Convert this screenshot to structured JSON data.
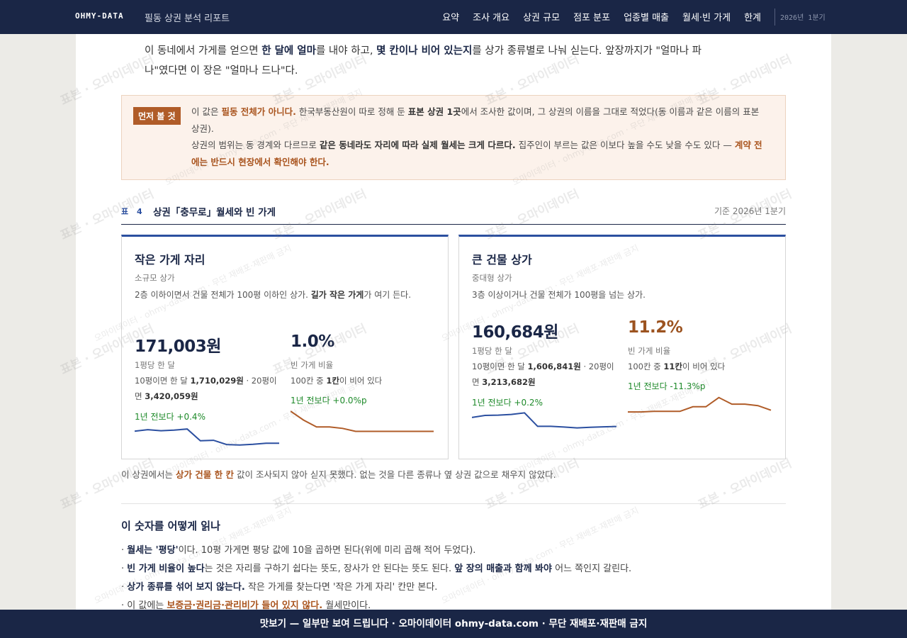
{
  "header": {
    "brand": "OHMY-DATA",
    "subtitle": "필동 상권 분석 리포트",
    "nav": [
      "요약",
      "조사 개요",
      "상권 규모",
      "점포 분포",
      "업종별 매출",
      "월세·빈 가게",
      "한계"
    ],
    "period": "2026년 1분기"
  },
  "intro": {
    "p1": "이 동네에서 가게를 얻으면 ",
    "b1": "한 달에 얼마",
    "p2": "를 내야 하고, ",
    "b2": "몇 칸이나 비어 있는지",
    "p3": "를 상가 종류별로 나눠 싣는다. 앞장까지가 \"얼마나 파나\"였다면 이 장은 \"얼마나 드나\"다."
  },
  "notice": {
    "tag": "먼저 볼 것",
    "t1": "이 값은 ",
    "o1": "필동 전체가 아니다.",
    "t2": " 한국부동산원이 따로 정해 둔 ",
    "b1": "표본 상권 1곳",
    "t3": "에서 조사한 값이며, 그 상권의 이름을 그대로 적었다(동 이름과 같은 이름의 표본 상권).",
    "t4": "상권의 범위는 동 경계와 다르므로 ",
    "b2": "같은 동네라도 자리에 따라 실제 월세는 크게 다르다.",
    "t5": " 집주인이 부르는 값은 이보다 높을 수도 낮을 수도 있다 — ",
    "o2": "계약 전에는 반드시 현장에서 확인해야 한다."
  },
  "table": {
    "num": "표 4",
    "title": "상권「충무로」월세와 빈 가게",
    "base": "기준 2026년 1분기"
  },
  "cards": [
    {
      "title": "작은 가게 자리",
      "type": "소규모 상가",
      "desc_pre": "2층 이하이면서 건물 전체가 100평 이하인 상가. ",
      "desc_bold": "길가 작은 가게",
      "desc_post": "가 여기 든다.",
      "rent": "171,003원",
      "rent_label": "1평당 한 달",
      "rent_d1": "10평이면 한 달 ",
      "rent_v1": "1,710,029원",
      "rent_d2": " · 20평이면 ",
      "rent_v2": "3,420,059원",
      "rent_change": "1년 전보다 +0.4%",
      "vacancy": "1.0%",
      "vacancy_label": "빈 가게 비율",
      "vac_d1": "100칸 중 ",
      "vac_v1": "1칸",
      "vac_d2": "이 비어 있다",
      "vac_change": "1년 전보다 +0.0%p"
    },
    {
      "title": "큰 건물 상가",
      "type": "중대형 상가",
      "desc_pre": "3층 이상이거나 건물 전체가 100평을 넘는 상가.",
      "desc_bold": "",
      "desc_post": "",
      "rent": "160,684원",
      "rent_label": "1평당 한 달",
      "rent_d1": "10평이면 한 달 ",
      "rent_v1": "1,606,841원",
      "rent_d2": " · 20평이면 ",
      "rent_v2": "3,213,682원",
      "rent_change": "1년 전보다 +0.2%",
      "vacancy": "11.2%",
      "vacancy_label": "빈 가게 비율",
      "vac_d1": "100칸 중 ",
      "vac_v1": "11칸",
      "vac_d2": "이 비어 있다",
      "vac_change": "1년 전보다 -11.3%p"
    }
  ],
  "chart_data": [
    {
      "type": "line",
      "series": [
        {
          "values": [
            0.24,
            0.17,
            0.22,
            0.19,
            0.14,
            0.69,
            0.67,
            0.87,
            0.89,
            0.86,
            0.81,
            0.81
          ]
        }
      ],
      "color": "#2b4fa0"
    },
    {
      "type": "line",
      "series": [
        {
          "values": [
            0.0,
            0.42,
            0.74,
            0.74,
            0.81,
            0.95,
            0.95,
            0.95,
            0.95,
            0.95,
            0.95,
            0.95
          ]
        }
      ],
      "color": "#b05c28"
    },
    {
      "type": "line",
      "series": [
        {
          "values": [
            0.33,
            0.21,
            0.19,
            0.15,
            0.06,
            0.85,
            0.85,
            0.89,
            0.94,
            0.91,
            0.88,
            0.86
          ]
        }
      ],
      "color": "#2b4fa0"
    },
    {
      "type": "line",
      "series": [
        {
          "values": [
            0.81,
            0.81,
            0.78,
            0.78,
            0.78,
            0.53,
            0.53,
            0.03,
            0.39,
            0.39,
            0.47,
            0.72
          ]
        }
      ],
      "color": "#b05c28"
    }
  ],
  "footnote": {
    "t1": "이 상권에서는 ",
    "b1": "상가 건물 한 칸",
    "t2": " 값이 조사되지 않아 싣지 못했다. 없는 것을 다른 종류나 옆 상권 값으로 채우지 않았다."
  },
  "howto": {
    "title": "이 숫자를 어떻게 읽나",
    "l1_b": "월세는 '평당'",
    "l1_t": "이다. 10평 가게면 평당 값에 10을 곱하면 된다(위에 미리 곱해 적어 두었다).",
    "l2_b": "빈 가게 비율이 높다",
    "l2_t": "는 것은 자리를 구하기 쉽다는 뜻도, 장사가 안 된다는 뜻도 된다. ",
    "l2_b2": "앞 장의 매출과 함께 봐야",
    "l2_t2": " 어느 쪽인지 갈린다.",
    "l3_b": "상가 종류를 섞어 보지 않는다.",
    "l3_t": " 작은 가게를 찾는다면 '작은 가게 자리' 칸만 본다.",
    "l4_t": "이 값에는 ",
    "l4_o": "보증금·권리금·관리비가 들어 있지 않다.",
    "l4_t2": " 월세만이다."
  },
  "watermark": {
    "main": "표본 · 오마이데이터",
    "small": "오마이데이터 · ohmy-data.com · 무단 재배포·재판매 금지"
  },
  "footer": "맛보기 — 일부만 보여 드립니다 · 오마이데이터 ohmy-data.com · 무단 재배포·재판매 금지"
}
